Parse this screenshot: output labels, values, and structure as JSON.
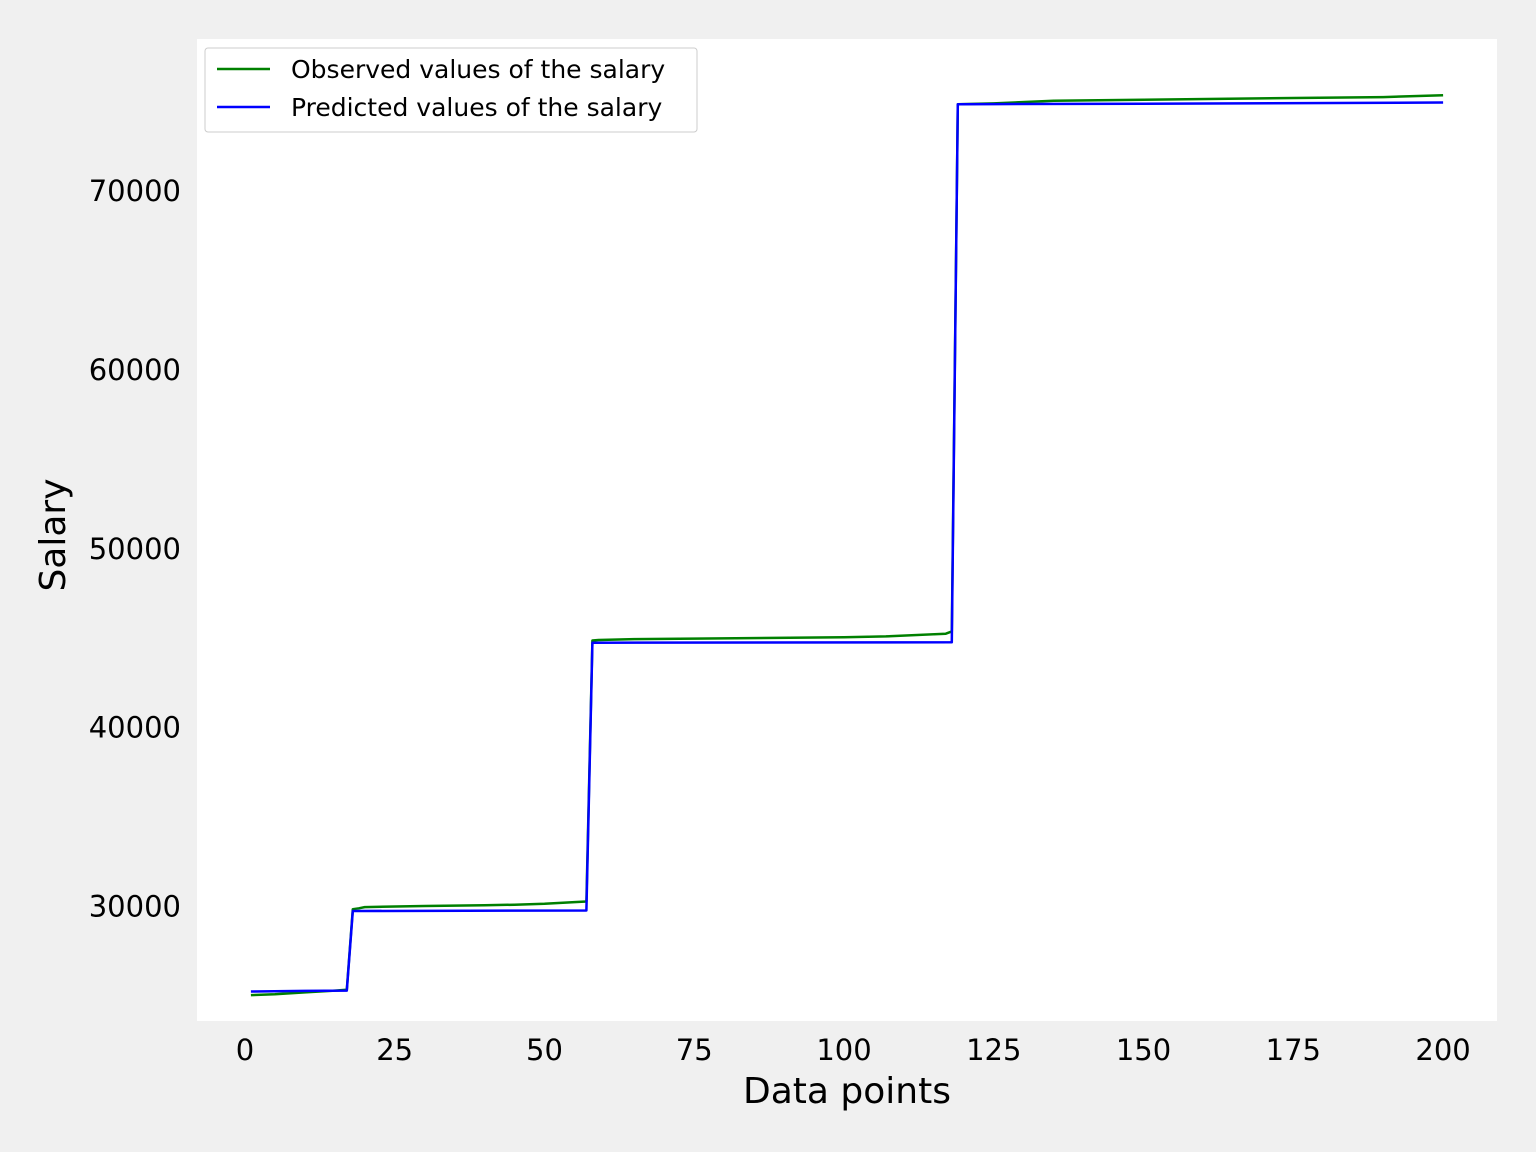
{
  "chart_data": {
    "type": "line",
    "xlabel": "Data points",
    "ylabel": "Salary",
    "xlim": [
      -8,
      209
    ],
    "ylim": [
      23600,
      78500
    ],
    "x_ticks": [
      0,
      25,
      50,
      75,
      100,
      125,
      150,
      175,
      200
    ],
    "x_tick_labels": [
      "0",
      "25",
      "50",
      "75",
      "100",
      "125",
      "150",
      "175",
      "200"
    ],
    "y_ticks": [
      30000,
      40000,
      50000,
      60000,
      70000
    ],
    "y_tick_labels": [
      "30000",
      "40000",
      "50000",
      "60000",
      "70000"
    ],
    "grid": false,
    "legend_position": "top-left",
    "series": [
      {
        "name": "Observed values of the salary",
        "color": "#008000",
        "x": [
          1,
          5,
          10,
          15,
          17,
          18,
          19,
          20,
          30,
          40,
          45,
          50,
          55,
          57,
          58,
          59,
          65,
          75,
          100,
          107,
          117,
          118,
          119,
          125,
          135,
          150,
          175,
          190,
          200
        ],
        "y": [
          25050,
          25100,
          25200,
          25300,
          25350,
          29850,
          29900,
          29970,
          30030,
          30070,
          30100,
          30150,
          30250,
          30280,
          44870,
          44900,
          44950,
          44980,
          45050,
          45100,
          45250,
          45380,
          74850,
          74900,
          75050,
          75100,
          75200,
          75250,
          75350
        ]
      },
      {
        "name": "Predicted values of the salary",
        "color": "#0000ff",
        "x": [
          1,
          10,
          17,
          18,
          57,
          58,
          118,
          119,
          125,
          150,
          200
        ],
        "y": [
          25250,
          25280,
          25300,
          29750,
          29780,
          44750,
          44770,
          74850,
          74860,
          74880,
          74950
        ]
      }
    ]
  }
}
